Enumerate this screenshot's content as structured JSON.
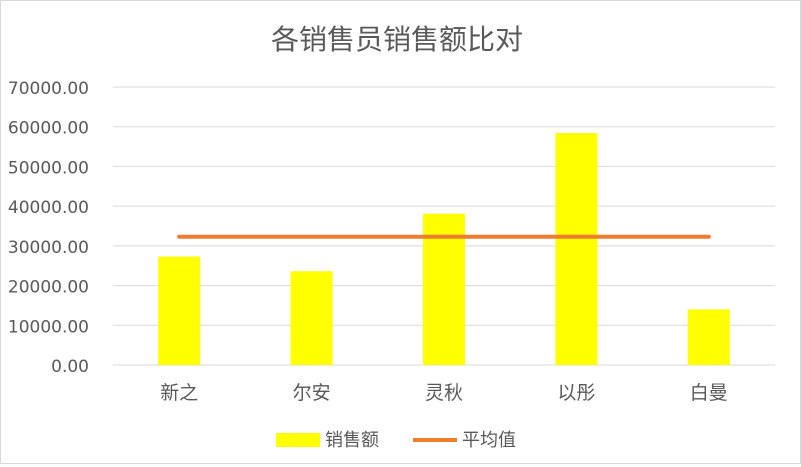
{
  "chart_data": {
    "type": "bar",
    "title": "各销售员销售额比对",
    "categories": [
      "新之",
      "尔安",
      "灵秋",
      "以彤",
      "白曼"
    ],
    "series": [
      {
        "name": "销售额",
        "type": "bar",
        "color": "#FFFF00",
        "values": [
          27300,
          23600,
          38100,
          58400,
          14000
        ]
      },
      {
        "name": "平均值",
        "type": "line",
        "color": "#ED7D31",
        "values": [
          32280,
          32280,
          32280,
          32280,
          32280
        ]
      }
    ],
    "ylim": [
      0,
      70000
    ],
    "y_ticks": [
      "0.00",
      "10000.00",
      "20000.00",
      "30000.00",
      "40000.00",
      "50000.00",
      "60000.00",
      "70000.00"
    ],
    "grid": true,
    "legend": "bottom",
    "xlabel": "",
    "ylabel": ""
  }
}
